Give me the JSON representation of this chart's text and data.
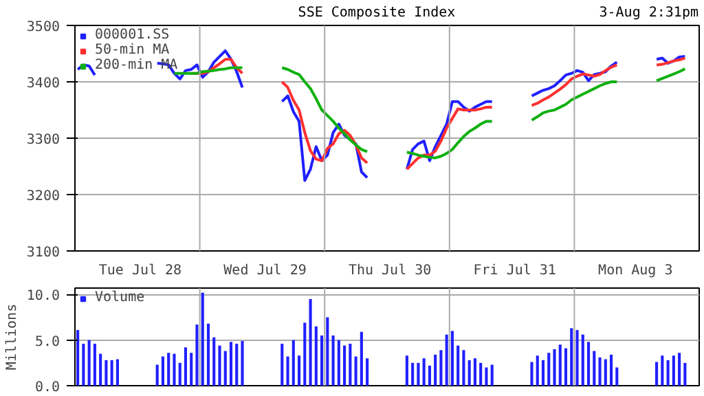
{
  "chart_data": [
    {
      "type": "line",
      "title": "SSE Composite Index",
      "subtitle": "3-Aug 2:31pm",
      "categories": [
        null,
        null,
        null,
        null,
        null,
        null,
        null,
        null,
        null,
        null,
        null,
        "Tue Jul 28",
        null,
        null,
        null,
        null,
        null,
        null,
        null,
        null,
        null,
        null,
        null,
        null,
        null,
        null,
        null,
        null,
        null,
        null,
        null,
        null,
        null,
        "Wed Jul 29",
        null,
        null,
        null,
        null,
        null,
        null,
        null,
        null,
        null,
        null,
        null,
        null,
        null,
        null,
        null,
        null,
        null,
        null,
        null,
        null,
        null,
        "Thu Jul 30",
        null,
        null,
        null,
        null,
        null,
        null,
        null,
        null,
        null,
        null,
        null,
        null,
        null,
        null,
        null,
        null,
        null,
        null,
        null,
        null,
        null,
        "Fri Jul 31",
        null,
        null,
        null,
        null,
        null,
        null,
        null,
        null,
        null,
        null,
        null,
        null,
        null,
        null,
        null,
        null,
        null,
        null,
        null,
        null,
        null,
        "Mon Aug  3",
        null,
        null,
        null,
        null,
        null,
        null,
        null,
        null,
        null,
        null
      ],
      "ylim": [
        3100,
        3500
      ],
      "yticks": [
        3100,
        3200,
        3300,
        3400,
        3500
      ],
      "grid": true,
      "legend": "top left",
      "series": [
        {
          "name": "000001.SS",
          "color": "#2020ff",
          "values": [
            3422,
            3430,
            3428,
            3412,
            null,
            null,
            null,
            null,
            null,
            null,
            null,
            null,
            null,
            null,
            3433,
            3432,
            3430,
            3415,
            3405,
            3420,
            3422,
            3430,
            3408,
            3418,
            3435,
            3445,
            3455,
            3440,
            3418,
            3390,
            null,
            null,
            null,
            null,
            null,
            null,
            3365,
            3375,
            3347,
            3330,
            3225,
            3245,
            3285,
            3260,
            3270,
            3310,
            3325,
            3305,
            3298,
            3290,
            3240,
            3230,
            null,
            null,
            null,
            null,
            null,
            null,
            3245,
            3280,
            3290,
            3295,
            3260,
            3285,
            3305,
            3325,
            3365,
            3365,
            3355,
            3348,
            3355,
            3360,
            3365,
            3365,
            null,
            null,
            null,
            null,
            null,
            null,
            3375,
            3380,
            3385,
            3388,
            3393,
            3402,
            3412,
            3415,
            3420,
            3417,
            3402,
            3413,
            3415,
            3418,
            3428,
            3435,
            null,
            null,
            null,
            null,
            null,
            null,
            3440,
            3442,
            3433,
            3437,
            3444,
            3445,
            null,
            null
          ]
        },
        {
          "name": "50-min MA",
          "color": "#ff3030",
          "values": [
            null,
            null,
            null,
            null,
            null,
            null,
            null,
            null,
            null,
            null,
            null,
            null,
            null,
            null,
            null,
            null,
            null,
            null,
            null,
            null,
            3415,
            3415,
            3415,
            3418,
            3425,
            3432,
            3440,
            3440,
            3425,
            3415,
            null,
            null,
            null,
            null,
            null,
            null,
            3400,
            3390,
            3367,
            3350,
            3310,
            3278,
            3263,
            3260,
            3282,
            3290,
            3308,
            3314,
            3305,
            3288,
            3265,
            3256,
            null,
            null,
            null,
            null,
            null,
            null,
            3245,
            3255,
            3265,
            3270,
            3270,
            3277,
            3295,
            3318,
            3335,
            3352,
            3350,
            3350,
            3350,
            3352,
            3355,
            3355,
            null,
            null,
            null,
            null,
            null,
            null,
            3358,
            3362,
            3368,
            3373,
            3380,
            3387,
            3395,
            3405,
            3410,
            3414,
            3412,
            3410,
            3413,
            3420,
            3426,
            3430,
            null,
            null,
            null,
            null,
            null,
            null,
            3430,
            3431,
            3434,
            3437,
            3439,
            3442,
            null,
            null
          ]
        },
        {
          "name": "200-min MA",
          "color": "#10b010",
          "values": [
            null,
            null,
            null,
            null,
            null,
            null,
            null,
            null,
            null,
            null,
            null,
            null,
            null,
            null,
            null,
            null,
            null,
            3415,
            3415,
            3415,
            3415,
            3415,
            3418,
            3419,
            3420,
            3422,
            3423,
            3425,
            3425,
            3425,
            null,
            null,
            null,
            null,
            null,
            null,
            3425,
            3422,
            3417,
            3413,
            3400,
            3388,
            3370,
            3350,
            3340,
            3330,
            3318,
            3308,
            3297,
            3288,
            3280,
            3276,
            null,
            null,
            null,
            null,
            null,
            null,
            3275,
            3273,
            3270,
            3268,
            3266,
            3265,
            3268,
            3273,
            3280,
            3292,
            3303,
            3312,
            3318,
            3325,
            3330,
            3330,
            null,
            null,
            null,
            null,
            null,
            null,
            3332,
            3338,
            3345,
            3348,
            3350,
            3355,
            3360,
            3368,
            3373,
            3378,
            3383,
            3388,
            3393,
            3397,
            3400,
            3400,
            null,
            null,
            null,
            null,
            null,
            null,
            3402,
            3406,
            3410,
            3414,
            3418,
            3423,
            null,
            null
          ]
        }
      ]
    },
    {
      "type": "bar",
      "ylabel": "Millions",
      "categories": [
        null,
        null,
        null,
        null,
        null,
        null,
        null,
        null,
        null,
        null,
        null,
        null,
        null,
        null,
        null,
        null,
        null,
        null,
        null,
        null,
        null,
        null,
        null,
        null,
        null,
        null,
        null,
        null,
        null,
        null,
        null,
        null,
        null,
        null,
        null,
        null,
        null,
        null,
        null,
        null,
        null,
        null,
        null,
        null,
        null,
        null,
        null,
        null,
        null,
        null,
        null,
        null,
        null,
        null,
        null,
        null,
        null,
        null,
        null,
        null,
        null,
        null,
        null,
        null,
        null,
        null,
        null,
        null,
        null,
        null,
        null,
        null,
        null,
        null,
        null,
        null,
        null,
        null,
        null,
        null,
        null,
        null,
        null,
        null,
        null,
        null,
        null,
        null,
        null,
        null,
        null,
        null,
        null,
        null,
        null,
        null,
        null,
        null,
        null,
        null,
        null,
        null,
        null,
        null,
        null,
        null,
        null,
        null,
        null,
        null
      ],
      "ylim": [
        0,
        10.7
      ],
      "yticks": [
        {
          "value": 0,
          "label": "0.0"
        },
        {
          "value": 5,
          "label": "5.0"
        },
        {
          "value": 10,
          "label": "10.0"
        }
      ],
      "tick_labels": "y",
      "grid": true,
      "legend": "top left",
      "series": [
        {
          "name": "Volume",
          "color": "#2020ff",
          "values": [
            6.1,
            4.6,
            5.0,
            4.6,
            3.5,
            2.8,
            2.8,
            2.9,
            null,
            null,
            null,
            null,
            null,
            null,
            2.3,
            3.2,
            3.6,
            3.5,
            2.5,
            4.2,
            3.6,
            6.7,
            10.2,
            6.8,
            5.3,
            4.4,
            3.8,
            4.8,
            4.6,
            4.9,
            null,
            null,
            null,
            null,
            null,
            null,
            4.6,
            3.2,
            5.0,
            3.3,
            6.9,
            9.5,
            6.5,
            5.5,
            7.5,
            5.5,
            5.0,
            4.4,
            4.6,
            3.2,
            5.9,
            3.0,
            null,
            null,
            null,
            null,
            null,
            null,
            3.3,
            2.5,
            2.5,
            3.0,
            2.2,
            3.4,
            3.9,
            5.6,
            6.0,
            4.4,
            3.9,
            2.8,
            3.0,
            2.5,
            2.0,
            2.3,
            null,
            null,
            null,
            null,
            null,
            null,
            2.6,
            3.3,
            2.8,
            3.6,
            4.0,
            4.5,
            4.1,
            6.3,
            6.1,
            5.6,
            4.8,
            3.8,
            3.1,
            2.9,
            3.4,
            2.0,
            null,
            null,
            null,
            null,
            null,
            null,
            2.6,
            3.3,
            2.8,
            3.3,
            3.6,
            2.5,
            null,
            null
          ]
        }
      ]
    }
  ]
}
